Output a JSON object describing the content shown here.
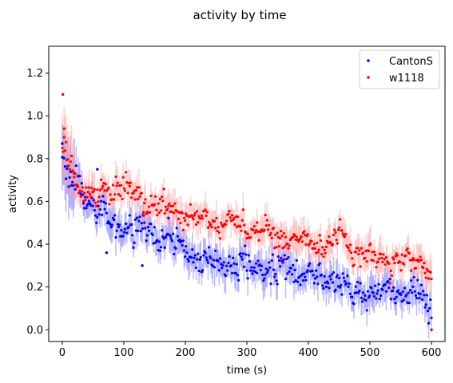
{
  "chart_data": {
    "type": "scatter",
    "title": "activity by time",
    "xlabel": "time (s)",
    "ylabel": "activity",
    "xlim": [
      -22,
      622
    ],
    "ylim": [
      -0.055,
      1.325
    ],
    "xticks": [
      0,
      100,
      200,
      300,
      400,
      500,
      600
    ],
    "yticks": [
      0.0,
      0.2,
      0.4,
      0.6,
      0.8,
      1.0,
      1.2
    ],
    "legend_position": "top-right",
    "grid": false,
    "sample_interval_s": 1.5,
    "series": [
      {
        "name": "CantonS",
        "color": "#0000ff",
        "band_color": "#6f6fff",
        "y_smoothed": [
          [
            0,
            0.8
          ],
          [
            3,
            0.76
          ],
          [
            10,
            0.72
          ],
          [
            20,
            0.69
          ],
          [
            30,
            0.64
          ],
          [
            40,
            0.61
          ],
          [
            50,
            0.58
          ],
          [
            60,
            0.55
          ],
          [
            70,
            0.53
          ],
          [
            80,
            0.51
          ],
          [
            90,
            0.5
          ],
          [
            100,
            0.49
          ],
          [
            110,
            0.48
          ],
          [
            120,
            0.47
          ],
          [
            130,
            0.46
          ],
          [
            140,
            0.45
          ],
          [
            150,
            0.43
          ],
          [
            160,
            0.42
          ],
          [
            170,
            0.42
          ],
          [
            180,
            0.41
          ],
          [
            190,
            0.39
          ],
          [
            200,
            0.38
          ],
          [
            210,
            0.35
          ],
          [
            220,
            0.33
          ],
          [
            230,
            0.32
          ],
          [
            240,
            0.31
          ],
          [
            260,
            0.3
          ],
          [
            280,
            0.3
          ],
          [
            300,
            0.29
          ],
          [
            320,
            0.28
          ],
          [
            340,
            0.28
          ],
          [
            360,
            0.3
          ],
          [
            380,
            0.28
          ],
          [
            400,
            0.26
          ],
          [
            420,
            0.24
          ],
          [
            440,
            0.23
          ],
          [
            460,
            0.22
          ],
          [
            465,
            0.17
          ],
          [
            480,
            0.17
          ],
          [
            500,
            0.17
          ],
          [
            520,
            0.17
          ],
          [
            540,
            0.17
          ],
          [
            560,
            0.18
          ],
          [
            580,
            0.17
          ],
          [
            590,
            0.14
          ],
          [
            600,
            0.12
          ]
        ],
        "spread_sd": 0.05
      },
      {
        "name": "w1118",
        "color": "#ff0000",
        "band_color": "#ff9a9a",
        "y_smoothed": [
          [
            0,
            0.85
          ],
          [
            3,
            0.82
          ],
          [
            10,
            0.78
          ],
          [
            20,
            0.73
          ],
          [
            30,
            0.68
          ],
          [
            40,
            0.64
          ],
          [
            50,
            0.62
          ],
          [
            60,
            0.63
          ],
          [
            70,
            0.65
          ],
          [
            80,
            0.66
          ],
          [
            90,
            0.67
          ],
          [
            100,
            0.66
          ],
          [
            110,
            0.64
          ],
          [
            120,
            0.63
          ],
          [
            130,
            0.61
          ],
          [
            140,
            0.6
          ],
          [
            150,
            0.59
          ],
          [
            160,
            0.57
          ],
          [
            170,
            0.56
          ],
          [
            180,
            0.55
          ],
          [
            190,
            0.55
          ],
          [
            200,
            0.54
          ],
          [
            220,
            0.52
          ],
          [
            240,
            0.51
          ],
          [
            260,
            0.51
          ],
          [
            280,
            0.5
          ],
          [
            300,
            0.48
          ],
          [
            320,
            0.46
          ],
          [
            340,
            0.44
          ],
          [
            360,
            0.43
          ],
          [
            380,
            0.42
          ],
          [
            400,
            0.41
          ],
          [
            420,
            0.39
          ],
          [
            440,
            0.43
          ],
          [
            460,
            0.42
          ],
          [
            480,
            0.36
          ],
          [
            500,
            0.35
          ],
          [
            520,
            0.33
          ],
          [
            540,
            0.32
          ],
          [
            560,
            0.32
          ],
          [
            580,
            0.31
          ],
          [
            595,
            0.29
          ],
          [
            600,
            0.27
          ]
        ],
        "spread_sd": 0.045
      }
    ],
    "notable_points": [
      {
        "series": "w1118",
        "x": 1,
        "y": 1.1
      },
      {
        "series": "w1118",
        "x": 3,
        "y": 0.94
      },
      {
        "series": "w1118",
        "x": 600,
        "y": 0.0
      },
      {
        "series": "CantonS",
        "x": 0,
        "y": 0.87
      },
      {
        "series": "CantonS",
        "x": 57,
        "y": 0.75
      },
      {
        "series": "CantonS",
        "x": 130,
        "y": 0.3
      },
      {
        "series": "CantonS",
        "x": 72,
        "y": 0.36
      }
    ]
  }
}
